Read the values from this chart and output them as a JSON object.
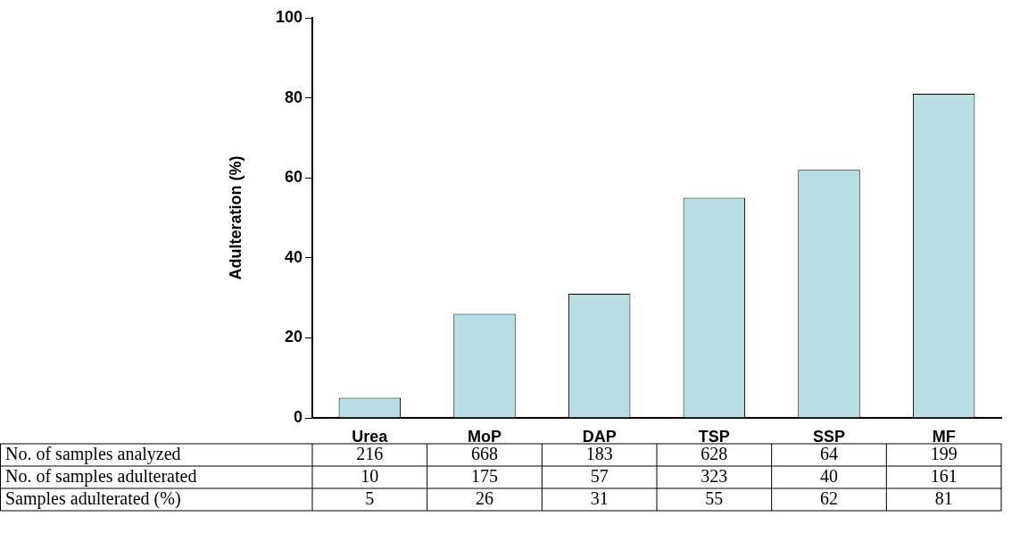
{
  "chart_data": {
    "type": "bar",
    "ylabel": "Adulteration (%)",
    "categories": [
      "Urea",
      "MoP",
      "DAP",
      "TSP",
      "SSP",
      "MF"
    ],
    "values": [
      5,
      26,
      31,
      55,
      62,
      81
    ],
    "color": "#b8e0e4",
    "annotations": [
      "No. of samples analyzed",
      "216",
      "668",
      "183",
      "628",
      "64",
      "199",
      "No. of samples adulterated",
      "10",
      "175",
      "57",
      "323",
      "40",
      "161",
      "Samples adulterated (%)"
    ],
    "ylim": [
      0,
      100
    ],
    "yticks": [
      0,
      20,
      40,
      60,
      80,
      100
    ],
    "grid": false,
    "legend": false,
    "data_labels": true
  }
}
